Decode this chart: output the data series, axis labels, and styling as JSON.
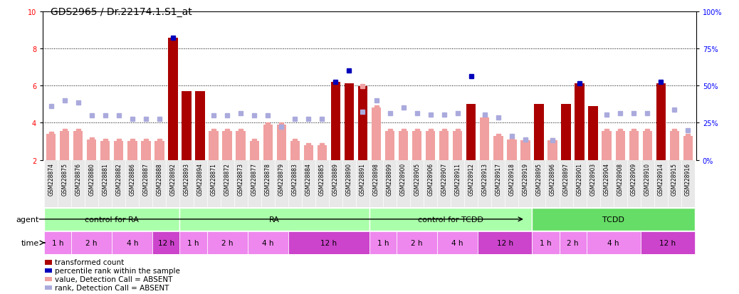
{
  "title": "GDS2965 / Dr.22174.1.S1_at",
  "samples": [
    "GSM228874",
    "GSM228875",
    "GSM228876",
    "GSM228880",
    "GSM228881",
    "GSM228882",
    "GSM228886",
    "GSM228887",
    "GSM228888",
    "GSM228892",
    "GSM228893",
    "GSM228894",
    "GSM228871",
    "GSM228872",
    "GSM228873",
    "GSM228877",
    "GSM228878",
    "GSM228879",
    "GSM228883",
    "GSM228884",
    "GSM228885",
    "GSM228889",
    "GSM228890",
    "GSM228891",
    "GSM228898",
    "GSM228899",
    "GSM228900",
    "GSM228905",
    "GSM228906",
    "GSM228907",
    "GSM228911",
    "GSM228912",
    "GSM228913",
    "GSM228917",
    "GSM228918",
    "GSM228919",
    "GSM228895",
    "GSM228896",
    "GSM228897",
    "GSM228901",
    "GSM228903",
    "GSM228904",
    "GSM228908",
    "GSM228909",
    "GSM228910",
    "GSM228914",
    "GSM228915",
    "GSM228916"
  ],
  "transformed_count": [
    3.4,
    3.55,
    3.55,
    3.1,
    3.0,
    3.0,
    3.0,
    3.0,
    3.0,
    8.55,
    5.7,
    5.7,
    3.55,
    3.55,
    3.55,
    3.0,
    3.9,
    3.9,
    3.0,
    2.8,
    2.8,
    6.2,
    6.1,
    5.95,
    4.8,
    3.55,
    3.55,
    3.55,
    3.55,
    3.55,
    3.55,
    5.0,
    4.3,
    3.3,
    3.1,
    3.05,
    5.0,
    3.05,
    5.0,
    6.1,
    4.9,
    3.55,
    3.55,
    3.55,
    3.55,
    6.1,
    3.55,
    3.3
  ],
  "is_dark_red": [
    false,
    false,
    false,
    false,
    false,
    false,
    false,
    false,
    false,
    true,
    true,
    true,
    false,
    false,
    false,
    false,
    false,
    false,
    false,
    false,
    false,
    true,
    true,
    true,
    false,
    false,
    false,
    false,
    false,
    false,
    false,
    true,
    false,
    false,
    false,
    false,
    true,
    false,
    true,
    true,
    true,
    false,
    false,
    false,
    false,
    true,
    false,
    false
  ],
  "scatter_value": [
    3.4,
    3.55,
    3.55,
    3.1,
    3.0,
    3.0,
    3.0,
    3.0,
    3.0,
    null,
    null,
    null,
    3.55,
    3.55,
    3.55,
    3.0,
    3.9,
    3.9,
    3.0,
    2.8,
    2.8,
    null,
    null,
    5.95,
    4.8,
    3.55,
    3.55,
    3.55,
    3.55,
    3.55,
    3.55,
    null,
    4.3,
    3.3,
    3.1,
    3.05,
    null,
    3.05,
    null,
    null,
    null,
    3.55,
    3.55,
    3.55,
    3.55,
    null,
    3.55,
    3.3
  ],
  "scatter_rank_val": [
    4.9,
    5.2,
    5.1,
    4.4,
    4.4,
    4.4,
    4.2,
    4.2,
    4.2,
    null,
    null,
    null,
    4.4,
    4.4,
    4.5,
    4.4,
    4.4,
    3.8,
    4.2,
    4.2,
    4.2,
    null,
    null,
    4.6,
    5.2,
    4.5,
    4.8,
    4.5,
    4.45,
    4.45,
    4.5,
    null,
    4.45,
    4.3,
    3.3,
    3.1,
    null,
    3.05,
    null,
    null,
    null,
    4.45,
    4.5,
    4.5,
    4.5,
    null,
    4.7,
    3.6
  ],
  "percentile_rank_val": [
    null,
    null,
    null,
    null,
    null,
    null,
    null,
    null,
    null,
    8.55,
    null,
    null,
    null,
    null,
    null,
    null,
    null,
    null,
    null,
    null,
    null,
    6.2,
    6.8,
    null,
    null,
    null,
    null,
    null,
    null,
    null,
    null,
    6.5,
    null,
    null,
    null,
    null,
    null,
    null,
    null,
    6.1,
    null,
    null,
    null,
    null,
    null,
    6.2,
    null,
    null
  ],
  "ylim_left": [
    2,
    10
  ],
  "ylim_right": [
    0,
    100
  ],
  "yticks_left": [
    2,
    4,
    6,
    8,
    10
  ],
  "yticks_right": [
    0,
    25,
    50,
    75,
    100
  ],
  "bar_color_dark": "#aa0000",
  "bar_color_light": "#f0a0a0",
  "scatter_value_color": "#f0a0a0",
  "scatter_rank_color": "#aaaadd",
  "percentile_color": "#0000bb",
  "bg_color": "#ffffff",
  "title_fontsize": 10,
  "tick_fontsize": 7,
  "agent_row_color_light": "#aaffaa",
  "agent_row_color_dark": "#66dd66",
  "time_row_color_light": "#ee88ee",
  "time_row_color_dark": "#cc44cc",
  "time_row_color_text": "#ffffff",
  "agent_groups": [
    {
      "label": "control for RA",
      "start": 0,
      "end": 10
    },
    {
      "label": "RA",
      "start": 10,
      "end": 24
    },
    {
      "label": "control for TCDD",
      "start": 24,
      "end": 36
    },
    {
      "label": "TCDD",
      "start": 36,
      "end": 48
    }
  ],
  "time_groups": [
    {
      "label": "1 h",
      "start": 0,
      "end": 2,
      "dark": false
    },
    {
      "label": "2 h",
      "start": 2,
      "end": 5,
      "dark": false
    },
    {
      "label": "4 h",
      "start": 5,
      "end": 8,
      "dark": false
    },
    {
      "label": "12 h",
      "start": 8,
      "end": 10,
      "dark": true
    },
    {
      "label": "1 h",
      "start": 10,
      "end": 12,
      "dark": false
    },
    {
      "label": "2 h",
      "start": 12,
      "end": 15,
      "dark": false
    },
    {
      "label": "4 h",
      "start": 15,
      "end": 18,
      "dark": false
    },
    {
      "label": "12 h",
      "start": 18,
      "end": 24,
      "dark": true
    },
    {
      "label": "1 h",
      "start": 24,
      "end": 26,
      "dark": false
    },
    {
      "label": "2 h",
      "start": 26,
      "end": 29,
      "dark": false
    },
    {
      "label": "4 h",
      "start": 29,
      "end": 32,
      "dark": false
    },
    {
      "label": "12 h",
      "start": 32,
      "end": 36,
      "dark": true
    },
    {
      "label": "1 h",
      "start": 36,
      "end": 38,
      "dark": false
    },
    {
      "label": "2 h",
      "start": 38,
      "end": 40,
      "dark": false
    },
    {
      "label": "4 h",
      "start": 40,
      "end": 44,
      "dark": false
    },
    {
      "label": "12 h",
      "start": 44,
      "end": 48,
      "dark": true
    }
  ],
  "legend_items": [
    {
      "color": "#aa0000",
      "label": "transformed count"
    },
    {
      "color": "#0000bb",
      "label": "percentile rank within the sample"
    },
    {
      "color": "#f0a0a0",
      "label": "value, Detection Call = ABSENT"
    },
    {
      "color": "#aaaadd",
      "label": "rank, Detection Call = ABSENT"
    }
  ]
}
